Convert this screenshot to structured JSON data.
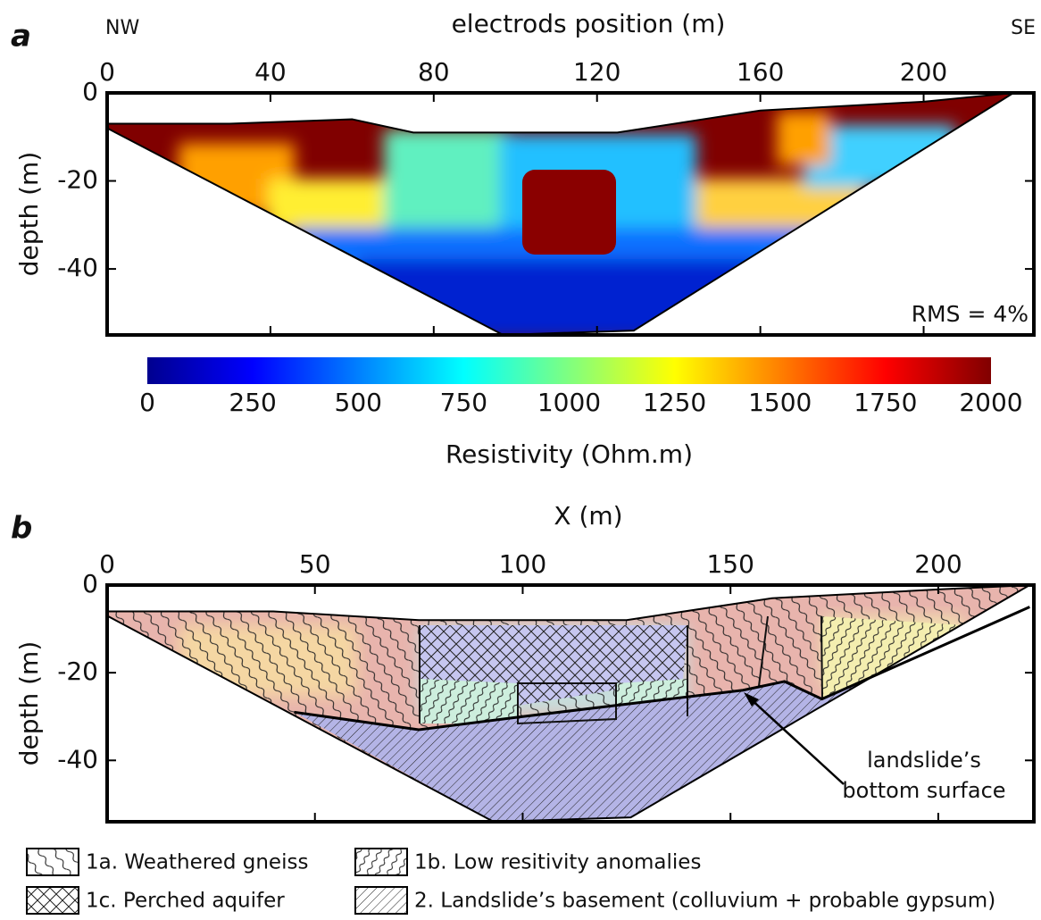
{
  "chart_data": [
    {
      "type": "section",
      "panel_label": "a",
      "title": "electrods position (m)",
      "y_label": "depth (m)",
      "side_labels": [
        "NW",
        "SE"
      ],
      "note": "RMS = 4%",
      "xlim": [
        0,
        227
      ],
      "xticks": [
        0,
        40,
        80,
        120,
        160,
        200
      ],
      "ylim": [
        -55,
        0
      ],
      "yticks": [
        0,
        -20,
        -40
      ],
      "boundary": {
        "x": [
          0,
          30,
          60,
          75,
          125,
          160,
          200,
          222,
          129,
          97,
          0
        ],
        "y": [
          -7,
          -7,
          -6,
          -9,
          -9,
          -4,
          -2,
          0,
          -54,
          -55,
          -8
        ]
      }
    },
    {
      "type": "colorbar",
      "title": "Resistivity (Ohm.m)",
      "xlim": [
        0,
        2000
      ],
      "xticks": [
        0,
        250,
        500,
        750,
        1000,
        1250,
        1500,
        1750,
        2000
      ]
    },
    {
      "type": "section",
      "panel_label": "b",
      "title": "X (m)",
      "y_label": "depth (m)",
      "xlim": [
        0,
        223
      ],
      "xticks": [
        0,
        50,
        100,
        150,
        200
      ],
      "ylim": [
        -54,
        0
      ],
      "yticks": [
        0,
        -20,
        -40
      ],
      "boundary": {
        "x": [
          0,
          40,
          75,
          125,
          160,
          200,
          222,
          126,
          93,
          0
        ],
        "y": [
          -6,
          -6,
          -8,
          -8,
          -3,
          -1,
          0,
          -53,
          -54,
          -7
        ]
      },
      "bottom_surface": {
        "x": [
          45,
          75,
          100,
          153,
          163,
          172,
          222
        ],
        "y": [
          -29,
          -33,
          -30,
          -24,
          -22,
          -26,
          -5
        ]
      },
      "annotation": [
        "landslide’s",
        "bottom surface"
      ],
      "legend": [
        "1a. Weathered gneiss",
        "1b. Low resitivity anomalies",
        "1c. Perched aquifer",
        "2. Landslide’s basement (colluvium + probable gypsum)"
      ]
    }
  ]
}
